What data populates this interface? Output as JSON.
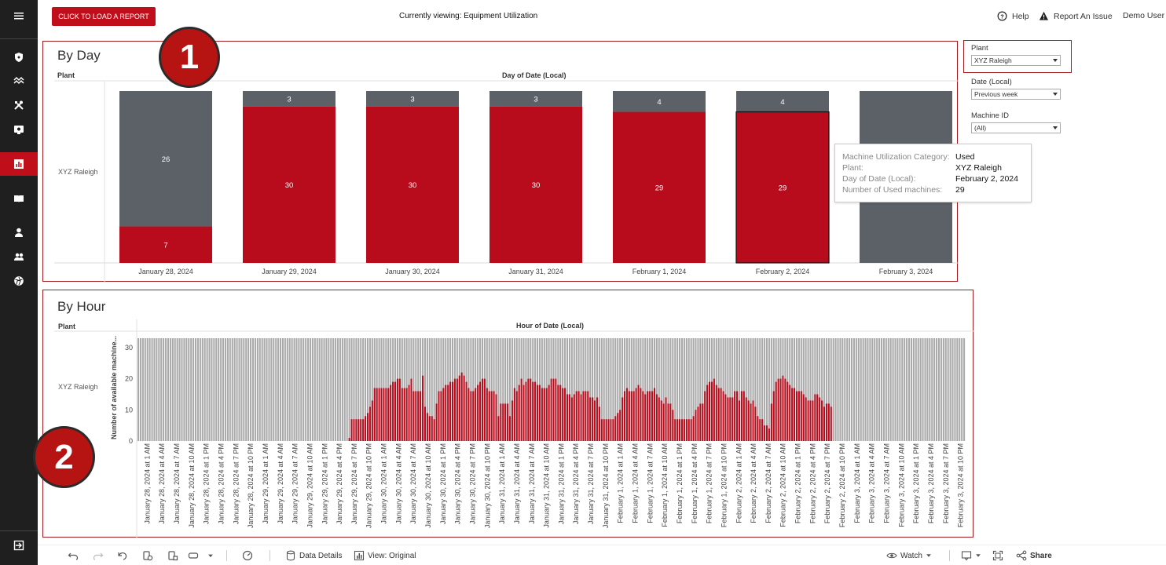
{
  "topbar": {
    "load_button": "CLICK TO LOAD A REPORT",
    "viewing": "Currently viewing: Equipment Utilization",
    "help": "Help",
    "report_issue": "Report An Issue",
    "user": "Demo User"
  },
  "sidebar": {
    "items": [
      "menu-icon",
      "shield-icon",
      "trend-icon",
      "tools-icon",
      "monitor-icon",
      "bar-chart-icon",
      "book-icon",
      "user-icon",
      "users-icon",
      "aperture-icon",
      "logout-icon"
    ],
    "active_index": 5
  },
  "by_day": {
    "title": "By Day",
    "row_header": "Plant",
    "column_header": "Day of Date (Local)",
    "plant": "XYZ Raleigh",
    "badge": "1"
  },
  "by_hour": {
    "title": "By Hour",
    "row_header": "Plant",
    "column_header": "Hour of Date (Local)",
    "plant": "XYZ Raleigh",
    "y_axis_label": "Number of available machine...",
    "badge": "2"
  },
  "tooltip": {
    "rows": [
      {
        "key": "Machine Utilization Category:",
        "value": "Used"
      },
      {
        "key": "Plant:",
        "value": "XYZ Raleigh"
      },
      {
        "key": "Day of Date (Local):",
        "value": "February 2, 2024"
      },
      {
        "key": "Number of Used machines:",
        "value": "29"
      }
    ]
  },
  "filters": {
    "plant_label": "Plant",
    "plant_value": "XYZ Raleigh",
    "date_label": "Date (Local)",
    "date_value": "Previous week",
    "machine_label": "Machine ID",
    "machine_value": "(All)"
  },
  "bottombar": {
    "data_details": "Data Details",
    "view": "View: Original",
    "watch": "Watch",
    "share": "Share"
  },
  "colors": {
    "used": "#b80c1c",
    "available": "#5c6167",
    "hour_available": "#a9a9a9",
    "accent": "#c00e1a"
  },
  "chart_data": [
    {
      "type": "bar",
      "title": "By Day",
      "xlabel": "Day of Date (Local)",
      "categories": [
        "January 28, 2024",
        "January 29, 2024",
        "January 30, 2024",
        "January 31, 2024",
        "February 1, 2024",
        "February 2, 2024",
        "February 3, 2024"
      ],
      "series": [
        {
          "name": "Used",
          "values": [
            7,
            30,
            30,
            30,
            29,
            29,
            0
          ]
        },
        {
          "name": "Available",
          "values": [
            26,
            3,
            3,
            3,
            4,
            4,
            33
          ]
        }
      ],
      "ylim": [
        0,
        33
      ],
      "stacked": true
    },
    {
      "type": "bar",
      "title": "By Hour",
      "xlabel": "Hour of Date (Local)",
      "ylabel": "Number of available machine...",
      "yticks": [
        0,
        10,
        20,
        30
      ],
      "ylim": [
        0,
        33
      ],
      "tick_labels": [
        "January 28, 2024 at 1 AM",
        "January 28, 2024 at 4 AM",
        "January 28, 2024 at 7 AM",
        "January 28, 2024 at 10 AM",
        "January 28, 2024 at 1 PM",
        "January 28, 2024 at 4 PM",
        "January 28, 2024 at 7 PM",
        "January 28, 2024 at 10 PM",
        "January 29, 2024 at 1 AM",
        "January 29, 2024 at 4 AM",
        "January 29, 2024 at 7 AM",
        "January 29, 2024 at 10 AM",
        "January 29, 2024 at 1 PM",
        "January 29, 2024 at 4 PM",
        "January 29, 2024 at 7 PM",
        "January 29, 2024 at 10 PM",
        "January 30, 2024 at 1 AM",
        "January 30, 2024 at 4 AM",
        "January 30, 2024 at 7 AM",
        "January 30, 2024 at 10 AM",
        "January 30, 2024 at 1 PM",
        "January 30, 2024 at 4 PM",
        "January 30, 2024 at 7 PM",
        "January 30, 2024 at 10 PM",
        "January 31, 2024 at 1 AM",
        "January 31, 2024 at 4 AM",
        "January 31, 2024 at 7 AM",
        "January 31, 2024 at 10 AM",
        "January 31, 2024 at 1 PM",
        "January 31, 2024 at 4 PM",
        "January 31, 2024 at 7 PM",
        "January 31, 2024 at 10 PM",
        "February 1, 2024 at 1 AM",
        "February 1, 2024 at 4 AM",
        "February 1, 2024 at 7 AM",
        "February 1, 2024 at 10 AM",
        "February 1, 2024 at 1 PM",
        "February 1, 2024 at 4 PM",
        "February 1, 2024 at 7 PM",
        "February 1, 2024 at 10 PM",
        "February 2, 2024 at 1 AM",
        "February 2, 2024 at 4 AM",
        "February 2, 2024 at 7 AM",
        "February 2, 2024 at 10 AM",
        "February 2, 2024 at 1 PM",
        "February 2, 2024 at 4 PM",
        "February 2, 2024 at 7 PM",
        "February 2, 2024 at 10 PM",
        "February 3, 2024 at 1 AM",
        "February 3, 2024 at 4 AM",
        "February 3, 2024 at 7 AM",
        "February 3, 2024 at 10 AM",
        "February 3, 2024 at 1 PM",
        "February 3, 2024 at 4 PM",
        "February 3, 2024 at 7 PM",
        "February 3, 2024 at 10 PM"
      ],
      "used_values": [
        0,
        0,
        0,
        0,
        0,
        0,
        0,
        0,
        0,
        0,
        0,
        0,
        0,
        0,
        0,
        0,
        0,
        0,
        0,
        0,
        0,
        0,
        0,
        0,
        0,
        0,
        0,
        0,
        0,
        0,
        0,
        0,
        0,
        0,
        0,
        0,
        0,
        0,
        0,
        0,
        0,
        0,
        0,
        0,
        0,
        0,
        0,
        0,
        0,
        0,
        0,
        0,
        0,
        0,
        0,
        0,
        0,
        0,
        0,
        0,
        0,
        0,
        0,
        0,
        0,
        0,
        0,
        0,
        0,
        0,
        0,
        0,
        0,
        0,
        0,
        0,
        0,
        0,
        0,
        0,
        0,
        0,
        0,
        0,
        0,
        0,
        0,
        0,
        0,
        0,
        0,
        0,
        1,
        7,
        7,
        7,
        7,
        7,
        7,
        8,
        9,
        11,
        13,
        17,
        17,
        17,
        17,
        17,
        17,
        17,
        18,
        19,
        19,
        20,
        20,
        17,
        17,
        17,
        18,
        20,
        16,
        16,
        16,
        16,
        21,
        11,
        9,
        8,
        8,
        7,
        12,
        16,
        16,
        17,
        18,
        18,
        19,
        19,
        20,
        20,
        21,
        22,
        21,
        19,
        17,
        16,
        16,
        17,
        18,
        19,
        20,
        20,
        17,
        16,
        16,
        16,
        15,
        8,
        12,
        12,
        12,
        12,
        8,
        13,
        17,
        16,
        18,
        20,
        18,
        19,
        20,
        20,
        19,
        19,
        18,
        18,
        17,
        17,
        17,
        18,
        20,
        20,
        20,
        18,
        18,
        17,
        17,
        15,
        15,
        14,
        15,
        16,
        16,
        15,
        16,
        16,
        16,
        14,
        14,
        13,
        14,
        11,
        7,
        7,
        7,
        7,
        7,
        7,
        8,
        9,
        10,
        14,
        16,
        17,
        16,
        16,
        16,
        17,
        18,
        17,
        16,
        15,
        16,
        16,
        16,
        17,
        15,
        14,
        13,
        12,
        14,
        12,
        12,
        10,
        7,
        7,
        7,
        7,
        7,
        7,
        7,
        7,
        8,
        10,
        11,
        12,
        12,
        16,
        18,
        19,
        19,
        20,
        18,
        17,
        17,
        16,
        15,
        14,
        14,
        14,
        16,
        16,
        13,
        16,
        16,
        14,
        13,
        12,
        13,
        11,
        8,
        7,
        7,
        5,
        5,
        4,
        12,
        16,
        19,
        20,
        20,
        21,
        20,
        19,
        18,
        17,
        17,
        16,
        16,
        16,
        15,
        14,
        13,
        13,
        13,
        15,
        15,
        14,
        13,
        11,
        12,
        12,
        11,
        0,
        0,
        0,
        0,
        0,
        0,
        0,
        0,
        0,
        0,
        0,
        0,
        0,
        0,
        0,
        0,
        0,
        0,
        0,
        0,
        0,
        0,
        0,
        0,
        0,
        0,
        0,
        0,
        0,
        0,
        0,
        0,
        0,
        0,
        0,
        0,
        0,
        0,
        0,
        0,
        0,
        0,
        0,
        0,
        0,
        0,
        0,
        0,
        0,
        0,
        0,
        0,
        0,
        0,
        0,
        0,
        0,
        0
      ],
      "total_value": 33
    }
  ]
}
